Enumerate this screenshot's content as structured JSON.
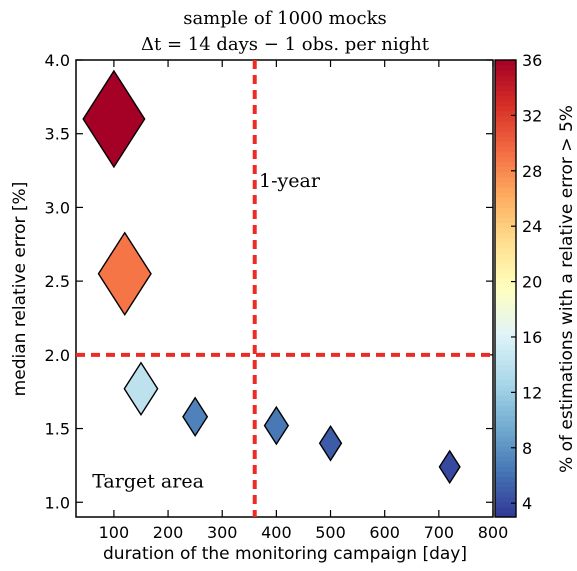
{
  "chart_data": {
    "type": "scatter",
    "title": "sample of 1000 mocks",
    "subtitle": "Δt = 14 days − 1 obs. per night",
    "xlabel": "duration of the monitoring campaign [day]",
    "ylabel": "median relative error [%]",
    "xlim": [
      30,
      800
    ],
    "ylim": [
      0.9,
      4.0
    ],
    "x_ticks": [
      100,
      200,
      300,
      400,
      500,
      600,
      700,
      800
    ],
    "y_ticks": [
      1.0,
      1.5,
      2.0,
      2.5,
      3.0,
      3.5,
      4.0
    ],
    "x_tick_labels": [
      "100",
      "200",
      "300",
      "400",
      "500",
      "600",
      "700",
      "800"
    ],
    "y_tick_labels": [
      "1.0",
      "1.5",
      "2.0",
      "2.5",
      "3.0",
      "3.5",
      "4.0"
    ],
    "grid": false,
    "marker": "diamond",
    "points": [
      {
        "x": 100,
        "y": 3.6,
        "color_value": 36
      },
      {
        "x": 120,
        "y": 2.55,
        "color_value": 29
      },
      {
        "x": 150,
        "y": 1.77,
        "color_value": 14
      },
      {
        "x": 250,
        "y": 1.58,
        "color_value": 7
      },
      {
        "x": 400,
        "y": 1.52,
        "color_value": 6.5
      },
      {
        "x": 500,
        "y": 1.4,
        "color_value": 5
      },
      {
        "x": 720,
        "y": 1.24,
        "color_value": 4
      }
    ],
    "reference_lines": [
      {
        "orientation": "vertical",
        "value": 360,
        "color": "#ee2a24",
        "style": "dashed"
      },
      {
        "orientation": "horizontal",
        "value": 2.0,
        "color": "#ee2a24",
        "style": "dashed"
      }
    ],
    "annotations": [
      {
        "text": "1-year",
        "x": 368,
        "y": 3.14
      },
      {
        "text": "Target area",
        "x": 60,
        "y": 1.1
      }
    ],
    "colorbar": {
      "label": "% of estimations with a relative error > 5%",
      "range": [
        3,
        36
      ],
      "ticks": [
        4,
        8,
        12,
        16,
        20,
        24,
        28,
        32,
        36
      ],
      "tick_labels": [
        "4",
        "8",
        "12",
        "16",
        "20",
        "24",
        "28",
        "32",
        "36"
      ],
      "colormap": "RdYlBu_r"
    }
  }
}
